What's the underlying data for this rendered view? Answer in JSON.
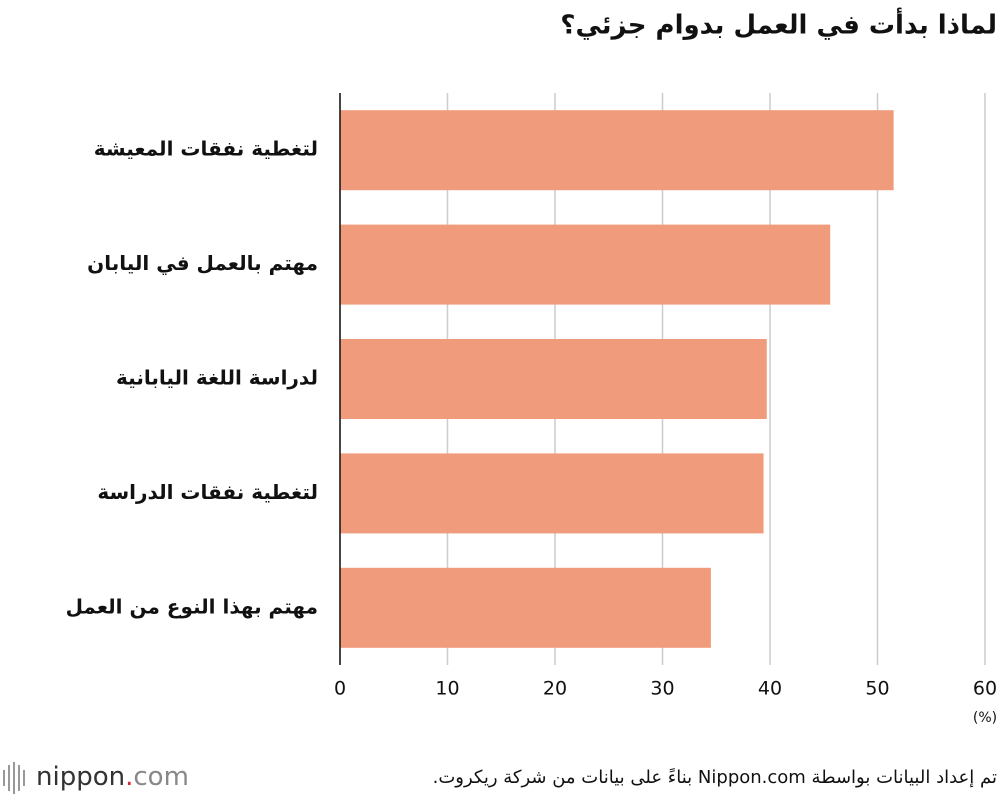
{
  "chart_data": {
    "type": "bar",
    "orientation": "horizontal",
    "title": "لماذا بدأت في العمل بدوام جزئي؟",
    "categories": [
      "لتغطية نفقات المعيشة",
      "مهتم بالعمل في اليابان",
      "لدراسة اللغة اليابانية",
      "لتغطية نفقات الدراسة",
      "مهتم بهذا النوع من العمل"
    ],
    "values": [
      51.5,
      45.6,
      39.7,
      39.4,
      34.5
    ],
    "color": "#f09b7b",
    "xlim": [
      0,
      60
    ],
    "xticks": [
      0,
      10,
      20,
      30,
      40,
      50,
      60
    ],
    "grid": true,
    "unit": "(%)",
    "source": "تم إعداد البيانات بواسطة Nippon.com بناءً على بيانات من شركة ريكروت.",
    "logo": [
      "nippon",
      ".",
      "com"
    ]
  }
}
